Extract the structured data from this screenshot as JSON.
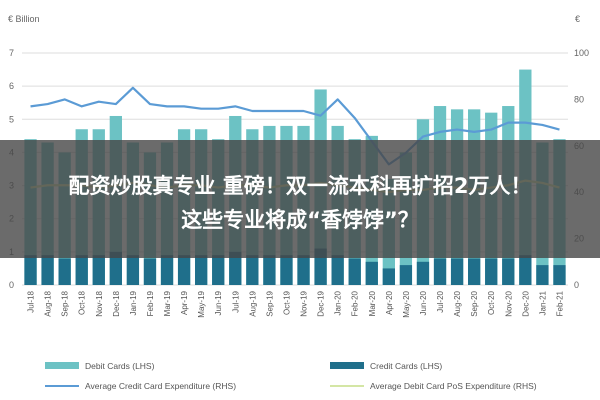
{
  "chart_data": {
    "type": "bar",
    "left_axis_title": "€ Billion",
    "right_axis_title": "€",
    "left_ylim": [
      0,
      7
    ],
    "right_ylim": [
      0,
      100
    ],
    "left_ticks": [
      "0",
      "1",
      "2",
      "3",
      "4",
      "5",
      "6",
      "7"
    ],
    "right_ticks": [
      "0",
      "20",
      "40",
      "60",
      "80",
      "100"
    ],
    "categories": [
      "Jul-18",
      "Aug-18",
      "Sep-18",
      "Oct-18",
      "Nov-18",
      "Dec-18",
      "Jan-19",
      "Feb-19",
      "Mar-19",
      "Apr-19",
      "May-19",
      "Jun-19",
      "Jul-19",
      "Aug-19",
      "Sep-19",
      "Oct-19",
      "Nov-19",
      "Dec-19",
      "Jan-20",
      "Feb-20",
      "Mar-20",
      "Apr-20",
      "May-20",
      "Jun-20",
      "Jul-20",
      "Aug-20",
      "Sep-20",
      "Oct-20",
      "Nov-20",
      "Dec-20",
      "Jan-21",
      "Feb-21"
    ],
    "series": [
      {
        "name": "Debit Cards (LHS)",
        "axis": "left",
        "kind": "bar",
        "values": [
          4.4,
          4.3,
          4.0,
          4.7,
          4.7,
          5.1,
          4.3,
          4.0,
          4.3,
          4.7,
          4.7,
          4.4,
          5.1,
          4.7,
          4.8,
          4.8,
          4.8,
          5.9,
          4.8,
          4.4,
          4.5,
          3.2,
          4.0,
          5.0,
          5.4,
          5.3,
          5.3,
          5.2,
          5.4,
          6.5,
          4.3,
          4.4
        ]
      },
      {
        "name": "Credit Cards (LHS)",
        "axis": "left",
        "kind": "bar",
        "values": [
          0.9,
          0.9,
          0.8,
          0.9,
          0.9,
          1.0,
          0.9,
          0.8,
          0.9,
          0.9,
          0.9,
          0.9,
          1.0,
          0.9,
          0.9,
          0.9,
          0.9,
          1.1,
          0.9,
          0.8,
          0.7,
          0.5,
          0.6,
          0.7,
          0.8,
          0.8,
          0.8,
          0.8,
          0.8,
          0.9,
          0.6,
          0.6
        ]
      },
      {
        "name": "Average Credit Card Expenditure (RHS)",
        "axis": "right",
        "kind": "line",
        "values": [
          77,
          78,
          80,
          77,
          79,
          78,
          85,
          78,
          77,
          77,
          76,
          76,
          77,
          75,
          75,
          75,
          75,
          73,
          80,
          72,
          62,
          52,
          57,
          64,
          66,
          67,
          66,
          67,
          70,
          70,
          69,
          67
        ]
      },
      {
        "name": "Average Debit Card PoS Expenditure (RHS)",
        "axis": "right",
        "kind": "line",
        "values": [
          42,
          43,
          43,
          43,
          42,
          43,
          44,
          43,
          42,
          43,
          43,
          42,
          43,
          43,
          42,
          43,
          43,
          44,
          43,
          42,
          41,
          40,
          41,
          41,
          42,
          42,
          41,
          42,
          43,
          45,
          44,
          42
        ]
      }
    ],
    "colors": {
      "debit": "#6cc2c4",
      "credit": "#1f6f8b",
      "credit_avg_line": "#5b9bd5",
      "debit_avg_line": "#d4e6a5",
      "grid": "#dddddd"
    },
    "grid": true,
    "legend_position": "bottom"
  },
  "overlay": {
    "line1": "配资炒股真专业 重磅！双一流本科再扩招2万人！",
    "line2": "这些专业将成“香饽饽”？"
  }
}
